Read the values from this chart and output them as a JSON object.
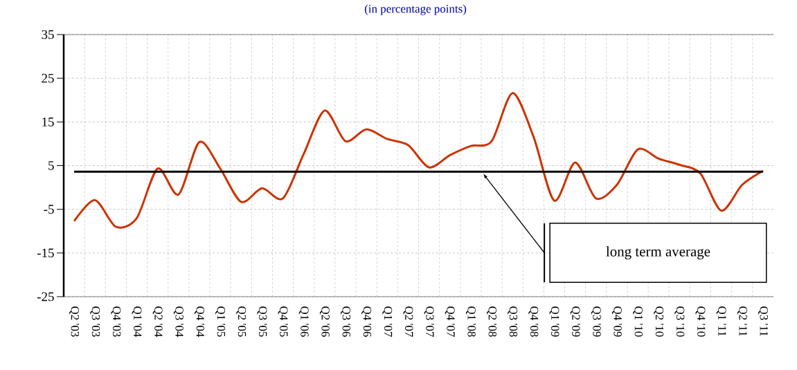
{
  "chart_data": {
    "type": "line",
    "title": "(in percentage points)",
    "categories": [
      "Q2 '03",
      "Q3 '03",
      "Q4 '03",
      "Q1 '04",
      "Q2 '04",
      "Q3 '04",
      "Q4 '04",
      "Q1 '05",
      "Q2 '05",
      "Q3 '05",
      "Q4 '05",
      "Q1 '06",
      "Q2 '06",
      "Q3 '06",
      "Q4 '06",
      "Q1 '07",
      "Q2 '07",
      "Q3 '07",
      "Q4 '07",
      "Q1 '08",
      "Q2 '08",
      "Q3 '08",
      "Q4 '08",
      "Q1 '09",
      "Q2 '09",
      "Q3 '09",
      "Q4 '09",
      "Q1 '10",
      "Q2 '10",
      "Q3 '10",
      "Q4 '10",
      "Q1 '11",
      "Q2 '11",
      "Q3 '11"
    ],
    "series": [
      {
        "color": "#cc3300",
        "values": [
          -7.7,
          -2.9,
          -9.0,
          -7.0,
          4.3,
          -1.6,
          10.4,
          4.3,
          -3.3,
          -0.2,
          -2.5,
          7.7,
          17.6,
          10.6,
          13.3,
          11.1,
          9.7,
          4.6,
          7.4,
          9.5,
          10.6,
          21.6,
          11.7,
          -3.0,
          5.7,
          -2.5,
          0.6,
          8.7,
          6.6,
          5.2,
          3.2,
          -5.3,
          0.6,
          3.8
        ]
      }
    ],
    "ylim": [
      -25,
      35
    ],
    "yticks": [
      -25,
      -15,
      -5,
      5,
      15,
      25,
      35
    ],
    "ref_lines": [
      {
        "axis": "y",
        "value": 3.6,
        "label": "long term average",
        "color": "#000000"
      }
    ],
    "grid": true,
    "legend": false,
    "marker": "none",
    "line_style": "solid"
  }
}
